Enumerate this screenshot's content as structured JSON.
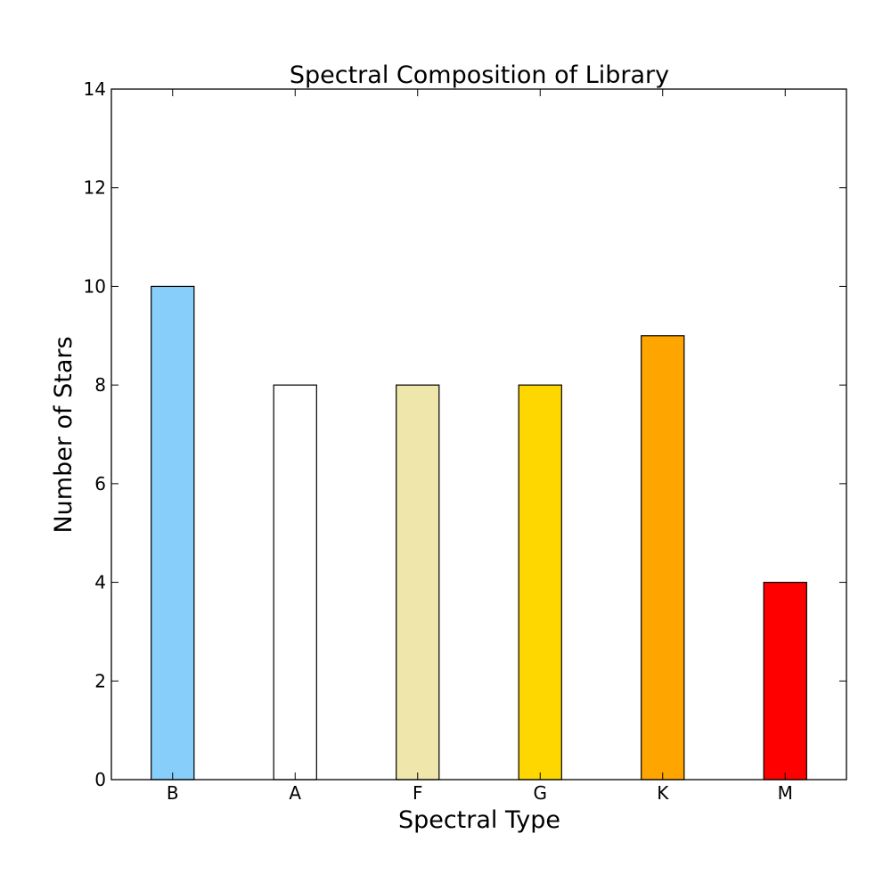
{
  "chart_data": {
    "type": "bar",
    "title": "Spectral Composition of Library",
    "xlabel": "Spectral Type",
    "ylabel": "Number of Stars",
    "categories": [
      "B",
      "A",
      "F",
      "G",
      "K",
      "M"
    ],
    "values": [
      10,
      8,
      8,
      8,
      9,
      4
    ],
    "colors": [
      "#87cefa",
      "#ffffff",
      "#eee6aa",
      "#ffd700",
      "#ffa500",
      "#ff0000"
    ],
    "ylim": [
      0,
      14
    ],
    "yticks": [
      "0",
      "2",
      "4",
      "6",
      "8",
      "10",
      "12",
      "14"
    ],
    "grid": false
  }
}
